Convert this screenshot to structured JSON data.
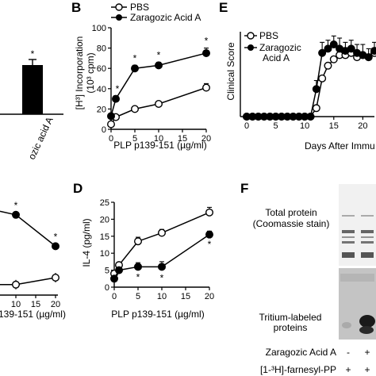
{
  "figure": {
    "panels": {
      "B": "B",
      "C": "C",
      "D": "D",
      "E": "E",
      "F": "F"
    }
  },
  "chart_data": [
    {
      "id": "A",
      "type": "bar",
      "categories": [
        "Zaragozic acid A"
      ],
      "values": [
        62
      ],
      "errors": [
        7
      ],
      "category_label": "ozic acid A",
      "ylim": [
        0,
        100
      ],
      "colors": [
        "#000000"
      ],
      "annotations": [
        "*"
      ]
    },
    {
      "id": "B",
      "type": "line",
      "title": "",
      "xlabel": "PLP p139-151 (µg/ml)",
      "ylabel_line1": "[H³] Incorporation",
      "ylabel_line2": "(10³ cpm)",
      "xlim": [
        0,
        20
      ],
      "ylim": [
        0,
        100
      ],
      "xticks": [
        0,
        5,
        10,
        15,
        20
      ],
      "yticks": [
        0,
        20,
        40,
        60,
        80,
        100
      ],
      "series": [
        {
          "name": "PBS",
          "marker": "open-circle",
          "x": [
            0,
            1,
            5,
            10,
            20
          ],
          "y": [
            5,
            12,
            20,
            25,
            41
          ],
          "err": [
            2,
            2,
            2,
            2,
            4
          ]
        },
        {
          "name": "Zaragozic Acid A",
          "marker": "filled-circle",
          "x": [
            0,
            1,
            5,
            10,
            20
          ],
          "y": [
            13,
            30,
            60,
            63,
            75
          ],
          "err": [
            2,
            3,
            3,
            3,
            5
          ]
        }
      ],
      "annotations": [
        {
          "x": 1,
          "text": "*"
        },
        {
          "x": 5,
          "text": "*"
        },
        {
          "x": 10,
          "text": "*"
        },
        {
          "x": 20,
          "text": "*"
        }
      ]
    },
    {
      "id": "C",
      "type": "line",
      "xlabel": "PLP p139-151 (µg/ml)",
      "xlabel_visible": "139-151 (µg/ml)",
      "xlim": [
        0,
        20
      ],
      "xticks": [
        10,
        15,
        20
      ],
      "series": [
        {
          "name": "PBS",
          "marker": "open-circle",
          "x": [
            10,
            20
          ],
          "y": [
            3,
            5
          ]
        },
        {
          "name": "Zaragozic Acid A",
          "marker": "filled-circle",
          "x": [
            10,
            20
          ],
          "y": [
            23,
            14
          ]
        }
      ],
      "annotations": [
        {
          "x": 10,
          "text": "*"
        },
        {
          "x": 20,
          "text": "*"
        }
      ]
    },
    {
      "id": "D",
      "type": "line",
      "xlabel": "PLP p139-151 (µg/ml)",
      "ylabel": "IL-4 (pg/ml)",
      "xlim": [
        0,
        20
      ],
      "ylim": [
        0,
        25
      ],
      "xticks": [
        0,
        5,
        10,
        15,
        20
      ],
      "yticks": [
        0,
        5,
        10,
        15,
        20,
        25
      ],
      "series": [
        {
          "name": "PBS",
          "marker": "open-circle",
          "x": [
            0,
            1,
            5,
            10,
            20
          ],
          "y": [
            4,
            6.5,
            13.5,
            16,
            22
          ],
          "err": [
            0.5,
            0.8,
            1.2,
            1.0,
            1.5
          ]
        },
        {
          "name": "Zaragozic Acid A",
          "marker": "filled-circle",
          "x": [
            0,
            1,
            5,
            10,
            20
          ],
          "y": [
            2.5,
            5,
            6,
            6,
            15.5
          ],
          "err": [
            0.5,
            0.5,
            1.2,
            1.5,
            1.0
          ]
        }
      ],
      "annotations": [
        {
          "x": 5,
          "text": "*"
        },
        {
          "x": 10,
          "text": "*"
        },
        {
          "x": 20,
          "text": "*"
        }
      ]
    },
    {
      "id": "E",
      "type": "line",
      "xlabel": "Days After Immu",
      "ylabel": "Clinical Score",
      "xlim": [
        0,
        22
      ],
      "xticks": [
        0,
        5,
        10,
        15,
        20
      ],
      "xtick_labels": [
        "0",
        "5",
        "10",
        "15",
        "20"
      ],
      "series": [
        {
          "name": "PBS",
          "marker": "open-circle",
          "x": [
            0,
            1,
            2,
            3,
            4,
            5,
            6,
            7,
            8,
            9,
            10,
            11,
            12,
            13,
            14,
            15,
            16,
            17,
            18,
            19,
            20,
            21,
            22
          ],
          "y": [
            0,
            0,
            0,
            0,
            0,
            0,
            0,
            0,
            0,
            0,
            0,
            0,
            0.4,
            1.8,
            2.4,
            2.7,
            2.9,
            2.9,
            3.0,
            2.8,
            2.9,
            2.8,
            3.0
          ]
        },
        {
          "name": "Zaragozic Acid A",
          "marker": "filled-circle",
          "x": [
            0,
            1,
            2,
            3,
            4,
            5,
            6,
            7,
            8,
            9,
            10,
            11,
            12,
            13,
            14,
            15,
            16,
            17,
            18,
            19,
            20,
            21,
            22
          ],
          "y": [
            0,
            0,
            0,
            0,
            0,
            0,
            0,
            0,
            0,
            0,
            0,
            0,
            1.3,
            3.0,
            3.2,
            3.4,
            3.2,
            3.1,
            3.2,
            3.0,
            2.9,
            2.8,
            3.1
          ],
          "err": [
            0,
            0,
            0,
            0,
            0,
            0,
            0,
            0,
            0,
            0,
            0,
            0,
            0.4,
            0.5,
            0.4,
            0.4,
            0.5,
            0.4,
            0.4,
            0.4,
            0.5,
            0.4,
            0.4
          ]
        }
      ]
    }
  ],
  "legend_B": {
    "pbs": "PBS",
    "zaragozic": "Zaragozic Acid A"
  },
  "legend_E": {
    "pbs": "PBS",
    "zaragozic_line1": "Zaragozic",
    "zaragozic_line2": "Acid A"
  },
  "blot_F": {
    "top_label_line1": "Total protein",
    "top_label_line2": "(Coomassie stain)",
    "bottom_label_line1": "Tritium-labeled",
    "bottom_label_line2": "proteins",
    "row1_label": "Zaragozic Acid A",
    "row1_values": [
      "-",
      "+"
    ],
    "row2_label": "[1-³H]-farnesyl-PP",
    "row2_values": [
      "+",
      "+"
    ]
  }
}
